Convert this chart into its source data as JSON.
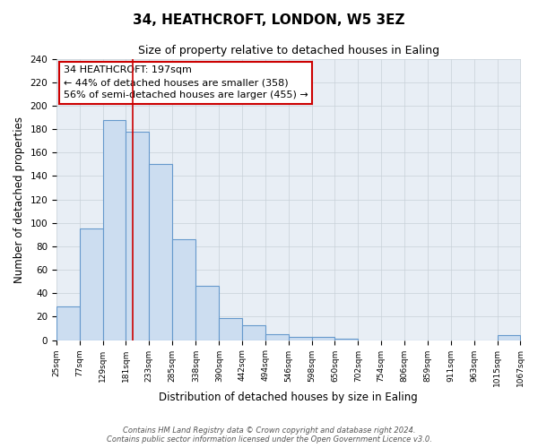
{
  "title": "34, HEATHCROFT, LONDON, W5 3EZ",
  "subtitle": "Size of property relative to detached houses in Ealing",
  "xlabel": "Distribution of detached houses by size in Ealing",
  "ylabel": "Number of detached properties",
  "bin_edges": [
    25,
    77,
    129,
    181,
    233,
    285,
    338,
    390,
    442,
    494,
    546,
    598,
    650,
    702,
    754,
    806,
    859,
    911,
    963,
    1015,
    1067
  ],
  "bin_labels": [
    "25sqm",
    "77sqm",
    "129sqm",
    "181sqm",
    "233sqm",
    "285sqm",
    "338sqm",
    "390sqm",
    "442sqm",
    "494sqm",
    "546sqm",
    "598sqm",
    "650sqm",
    "702sqm",
    "754sqm",
    "806sqm",
    "859sqm",
    "911sqm",
    "963sqm",
    "1015sqm",
    "1067sqm"
  ],
  "heights": [
    29,
    95,
    188,
    178,
    150,
    86,
    46,
    19,
    13,
    5,
    3,
    3,
    1,
    0,
    0,
    0,
    0,
    0,
    0,
    4
  ],
  "bar_facecolor": "#ccddf0",
  "bar_edgecolor": "#6699cc",
  "property_line_x": 197,
  "property_line_color": "#cc0000",
  "annotation_line1": "34 HEATHCROFT: 197sqm",
  "annotation_line2": "← 44% of detached houses are smaller (358)",
  "annotation_line3": "56% of semi-detached houses are larger (455) →",
  "annotation_box_edgecolor": "#cc0000",
  "ylim": [
    0,
    240
  ],
  "yticks": [
    0,
    20,
    40,
    60,
    80,
    100,
    120,
    140,
    160,
    180,
    200,
    220,
    240
  ],
  "footnote1": "Contains HM Land Registry data © Crown copyright and database right 2024.",
  "footnote2": "Contains public sector information licensed under the Open Government Licence v3.0.",
  "background_color": "#ffffff",
  "plot_bg_color": "#e8eef5",
  "grid_color": "#c8d0d8"
}
